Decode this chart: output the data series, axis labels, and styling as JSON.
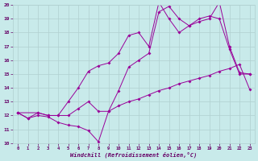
{
  "xlabel": "Windchill (Refroidissement éolien,°C)",
  "bg_color": "#c8eaea",
  "line_color": "#990099",
  "xlim": [
    -0.5,
    23.5
  ],
  "ylim": [
    10,
    20
  ],
  "yticks": [
    10,
    11,
    12,
    13,
    14,
    15,
    16,
    17,
    18,
    19,
    20
  ],
  "xticks": [
    0,
    1,
    2,
    3,
    4,
    5,
    6,
    7,
    8,
    9,
    10,
    11,
    12,
    13,
    14,
    15,
    16,
    17,
    18,
    19,
    20,
    21,
    22,
    23
  ],
  "line1_x": [
    0,
    1,
    2,
    3,
    4,
    5,
    6,
    7,
    8,
    9,
    10,
    11,
    12,
    13,
    14,
    15,
    16,
    17,
    18,
    19,
    20,
    21,
    22,
    23
  ],
  "line1_y": [
    12.2,
    11.8,
    12.0,
    11.9,
    11.5,
    11.3,
    11.2,
    10.9,
    10.1,
    12.3,
    12.7,
    13.0,
    13.2,
    13.5,
    13.8,
    14.0,
    14.3,
    14.5,
    14.7,
    14.9,
    15.2,
    15.4,
    15.7,
    13.9
  ],
  "line2_x": [
    0,
    1,
    2,
    3,
    4,
    5,
    6,
    7,
    8,
    9,
    10,
    11,
    12,
    13,
    14,
    15,
    16,
    17,
    18,
    19,
    20,
    21,
    22,
    23
  ],
  "line2_y": [
    12.2,
    11.8,
    12.2,
    12.0,
    12.0,
    12.0,
    12.5,
    13.0,
    12.3,
    12.3,
    13.8,
    15.5,
    16.0,
    16.5,
    19.5,
    19.9,
    19.0,
    18.5,
    19.0,
    19.2,
    19.0,
    16.8,
    15.0,
    15.0
  ],
  "line3_x": [
    0,
    2,
    3,
    4,
    5,
    6,
    7,
    8,
    9,
    10,
    11,
    12,
    13,
    14,
    15,
    16,
    17,
    18,
    19,
    20,
    21,
    22,
    23
  ],
  "line3_y": [
    12.2,
    12.2,
    12.0,
    12.0,
    13.0,
    14.0,
    15.2,
    15.6,
    15.8,
    16.5,
    17.8,
    18.0,
    17.0,
    20.2,
    19.0,
    18.0,
    18.5,
    18.8,
    19.0,
    20.2,
    17.0,
    15.1,
    15.0
  ],
  "grid_color": "#b0d0d0"
}
